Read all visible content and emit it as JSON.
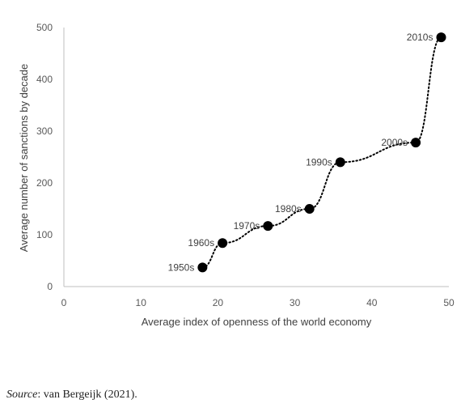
{
  "chart_data": {
    "type": "scatter",
    "xlabel": "Average index of openness of the world economy",
    "ylabel": "Average number of sanctions by decade",
    "xlim": [
      0,
      50
    ],
    "ylim": [
      0,
      500
    ],
    "xticks": [
      "0",
      "10",
      "20",
      "30",
      "40",
      "50"
    ],
    "yticks": [
      "0",
      "100",
      "200",
      "300",
      "400",
      "500"
    ],
    "grid": false,
    "connector": "smoothed dotted line",
    "points": [
      {
        "label": "1950s",
        "x": 18.0,
        "y": 37
      },
      {
        "label": "1960s",
        "x": 20.6,
        "y": 84
      },
      {
        "label": "1970s",
        "x": 26.5,
        "y": 117
      },
      {
        "label": "1980s",
        "x": 31.9,
        "y": 150
      },
      {
        "label": "1990s",
        "x": 35.9,
        "y": 240
      },
      {
        "label": "2000s",
        "x": 45.7,
        "y": 278
      },
      {
        "label": "2010s",
        "x": 49.0,
        "y": 481
      }
    ],
    "marker_color": "#000000",
    "axis_color": "#bfbfbf"
  },
  "source": {
    "label": "Source",
    "text": ": van Bergeijk (2021)."
  }
}
